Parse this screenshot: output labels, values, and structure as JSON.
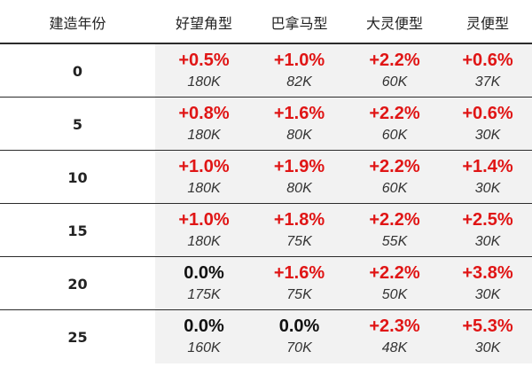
{
  "headers": [
    "建造年份",
    "好望角型",
    "巴拿马型",
    "大灵便型",
    "灵便型"
  ],
  "rows": [
    {
      "year": "0",
      "cells": [
        {
          "pct": "+0.5%",
          "count": "180K",
          "color": "red"
        },
        {
          "pct": "+1.0%",
          "count": "82K",
          "color": "red"
        },
        {
          "pct": "+2.2%",
          "count": "60K",
          "color": "red"
        },
        {
          "pct": "+0.6%",
          "count": "37K",
          "color": "red"
        }
      ]
    },
    {
      "year": "5",
      "cells": [
        {
          "pct": "+0.8%",
          "count": "180K",
          "color": "red"
        },
        {
          "pct": "+1.6%",
          "count": "80K",
          "color": "red"
        },
        {
          "pct": "+2.2%",
          "count": "60K",
          "color": "red"
        },
        {
          "pct": "+0.6%",
          "count": "30K",
          "color": "red"
        }
      ]
    },
    {
      "year": "10",
      "cells": [
        {
          "pct": "+1.0%",
          "count": "180K",
          "color": "red"
        },
        {
          "pct": "+1.9%",
          "count": "80K",
          "color": "red"
        },
        {
          "pct": "+2.2%",
          "count": "60K",
          "color": "red"
        },
        {
          "pct": "+1.4%",
          "count": "30K",
          "color": "red"
        }
      ]
    },
    {
      "year": "15",
      "cells": [
        {
          "pct": "+1.0%",
          "count": "180K",
          "color": "red"
        },
        {
          "pct": "+1.8%",
          "count": "75K",
          "color": "red"
        },
        {
          "pct": "+2.2%",
          "count": "55K",
          "color": "red"
        },
        {
          "pct": "+2.5%",
          "count": "30K",
          "color": "red"
        }
      ]
    },
    {
      "year": "20",
      "cells": [
        {
          "pct": "0.0%",
          "count": "175K",
          "color": "black"
        },
        {
          "pct": "+1.6%",
          "count": "75K",
          "color": "red"
        },
        {
          "pct": "+2.2%",
          "count": "50K",
          "color": "red"
        },
        {
          "pct": "+3.8%",
          "count": "30K",
          "color": "red"
        }
      ]
    },
    {
      "year": "25",
      "cells": [
        {
          "pct": "0.0%",
          "count": "160K",
          "color": "black"
        },
        {
          "pct": "0.0%",
          "count": "70K",
          "color": "black"
        },
        {
          "pct": "+2.3%",
          "count": "48K",
          "color": "red"
        },
        {
          "pct": "+5.3%",
          "count": "30K",
          "color": "red"
        }
      ]
    }
  ],
  "colors": {
    "positive": "#e01515",
    "neutral": "#111111",
    "cell_bg": "#f2f2f2",
    "rule": "#2b2b2b"
  }
}
